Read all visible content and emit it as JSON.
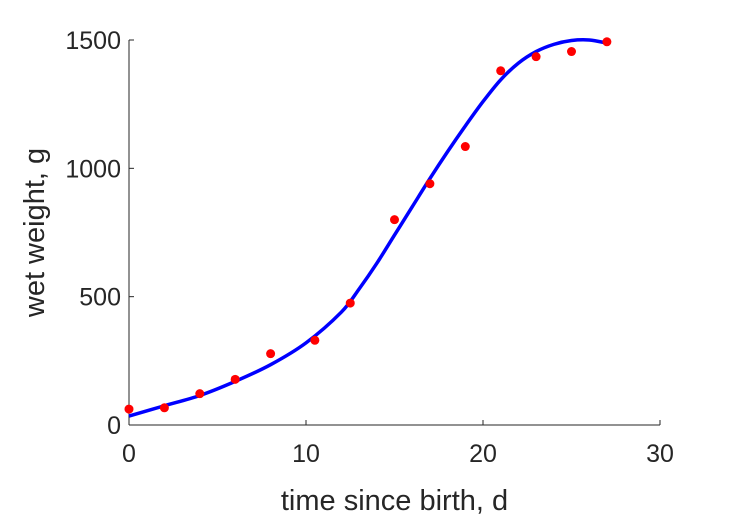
{
  "chart_data": {
    "type": "scatter",
    "title": "",
    "xlabel": "time since birth, d",
    "ylabel": "wet weight, g",
    "xlim": [
      0,
      30
    ],
    "ylim": [
      0,
      1500
    ],
    "xticks": [
      0,
      10,
      20,
      30
    ],
    "yticks": [
      0,
      500,
      1000,
      1500
    ],
    "xtick_labels": [
      "0",
      "10",
      "20",
      "30"
    ],
    "ytick_labels": [
      "0",
      "500",
      "1000",
      "1500"
    ],
    "grid": false,
    "legend": "none",
    "series": [
      {
        "kind": "points",
        "color": "#ff0000",
        "x": [
          0,
          2,
          4,
          6,
          8,
          10.5,
          12.5,
          15,
          17,
          19,
          21,
          23,
          25,
          27
        ],
        "y": [
          62,
          67,
          122,
          178,
          278,
          330,
          475,
          800,
          940,
          1085,
          1380,
          1435,
          1455,
          1493
        ]
      },
      {
        "kind": "fit-line",
        "color": "#0000ff",
        "x": [
          0,
          2,
          4,
          6,
          8,
          10,
          12,
          13,
          14,
          15,
          16,
          17,
          18,
          19,
          20,
          21,
          22,
          23,
          24,
          25,
          26,
          27
        ],
        "y": [
          35,
          75,
          115,
          170,
          235,
          320,
          440,
          530,
          630,
          740,
          850,
          960,
          1065,
          1165,
          1260,
          1345,
          1410,
          1455,
          1483,
          1498,
          1500,
          1488
        ]
      }
    ]
  }
}
